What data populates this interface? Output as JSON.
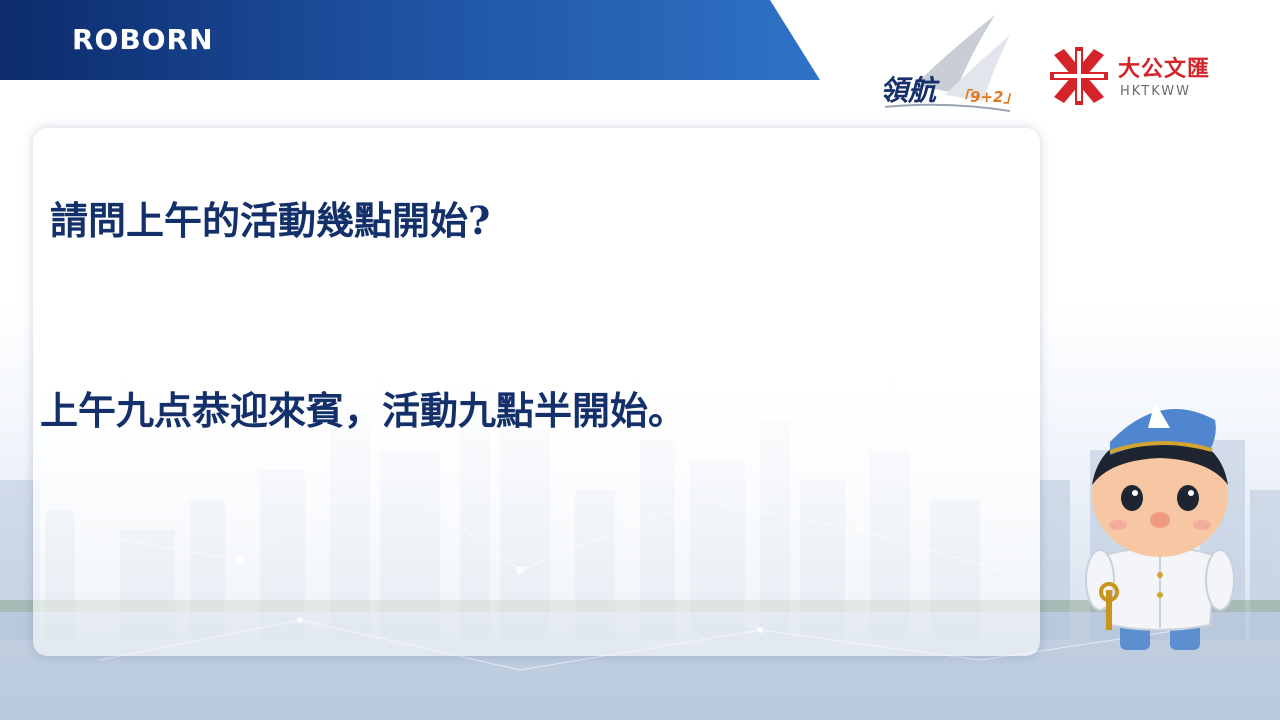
{
  "header": {
    "brand_logo": "ROBORN"
  },
  "logos": {
    "linghang": {
      "main": "領航",
      "sub": "「9+2」"
    },
    "tkww": {
      "chinese": "大公文匯",
      "english": "HKTKWW",
      "icon": "tkww-emblem-icon"
    }
  },
  "slide": {
    "question": "請問上午的活動幾點開始?",
    "answer": "上午九点恭迎來賓，活動九點半開始。"
  },
  "colors": {
    "banner": "#1d4f9e",
    "text": "#14306b",
    "tkww_red": "#d4242a",
    "linghang_orange": "#e07a1a"
  },
  "decor": {
    "mascot": "sailor-mascot-icon",
    "background": "city-skyline"
  }
}
